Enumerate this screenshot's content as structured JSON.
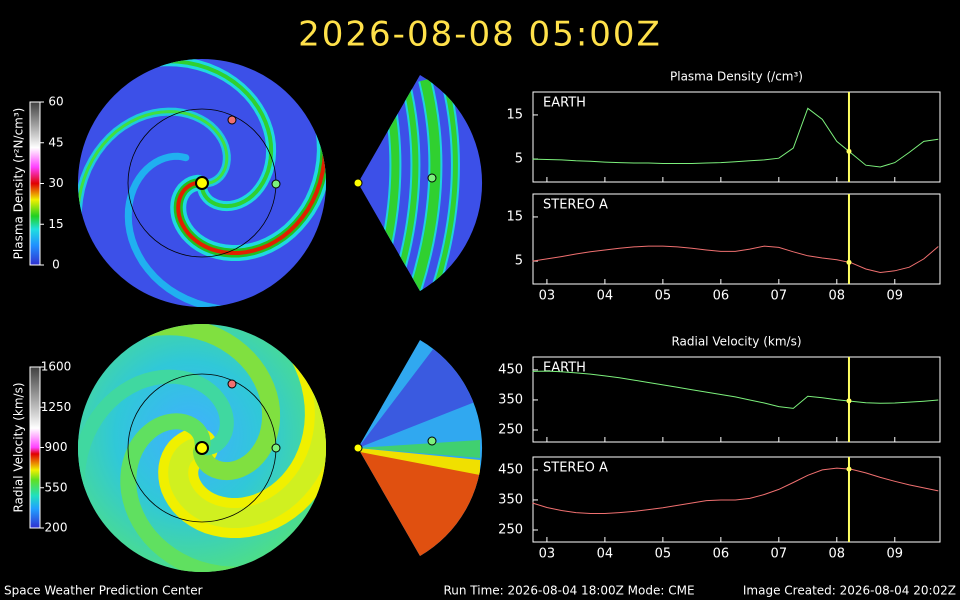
{
  "header": {
    "title": "2026-08-08  05:00Z"
  },
  "footer": {
    "left": "Space Weather Prediction Center",
    "center": "Run Time: 2026-08-04 18:00Z  Mode: CME",
    "right": "Image Created: 2026-08-04 20:02Z"
  },
  "colorbars": [
    {
      "label": "Plasma Density (r²N/cm³)",
      "ticks": [
        0,
        15,
        30,
        45,
        60
      ],
      "lim": [
        0,
        60
      ]
    },
    {
      "label": "Radial Velocity (km/s)",
      "ticks": [
        200,
        550,
        900,
        1250,
        1600
      ],
      "lim": [
        200,
        1600
      ]
    }
  ],
  "chart_data": [
    {
      "type": "line",
      "title": "Plasma Density (/cm³)",
      "show_xtick_labels": false,
      "x": [
        2.75,
        3,
        3.25,
        3.5,
        3.75,
        4,
        4.25,
        4.5,
        4.75,
        5,
        5.25,
        5.5,
        5.75,
        6,
        6.25,
        6.5,
        6.75,
        7,
        7.25,
        7.5,
        7.75,
        8,
        8.25,
        8.5,
        8.75,
        9,
        9.25,
        9.5,
        9.75
      ],
      "series": [
        {
          "name": "EARTH",
          "color": "#7cf07c",
          "values": [
            5.0,
            4.9,
            4.8,
            4.6,
            4.5,
            4.3,
            4.2,
            4.1,
            4.1,
            4.0,
            4.0,
            4.0,
            4.1,
            4.2,
            4.4,
            4.6,
            4.8,
            5.2,
            7.5,
            16.5,
            14.0,
            9.0,
            6.3,
            3.6,
            3.2,
            4.2,
            6.5,
            9.0,
            9.5
          ]
        }
      ],
      "xlim": [
        2.76,
        9.78
      ],
      "ylim": [
        -0.2,
        20.2
      ],
      "yticks": [
        5,
        15
      ],
      "xticks": [
        {
          "value": 3,
          "label": "03"
        },
        {
          "value": 4,
          "label": "04"
        },
        {
          "value": 5,
          "label": "05"
        },
        {
          "value": 6,
          "label": "06"
        },
        {
          "value": 7,
          "label": "07"
        },
        {
          "value": 8,
          "label": "08"
        },
        {
          "value": 9,
          "label": "09"
        }
      ],
      "time_marker": 8.21
    },
    {
      "type": "line",
      "show_xtick_labels": true,
      "x": [
        2.75,
        3,
        3.25,
        3.5,
        3.75,
        4,
        4.25,
        4.5,
        4.75,
        5,
        5.25,
        5.5,
        5.75,
        6,
        6.25,
        6.5,
        6.75,
        7,
        7.25,
        7.5,
        7.75,
        8,
        8.25,
        8.5,
        8.75,
        9,
        9.25,
        9.5,
        9.75
      ],
      "series": [
        {
          "name": "STEREO A",
          "color": "#f07070",
          "values": [
            5.0,
            5.5,
            6.0,
            6.6,
            7.1,
            7.5,
            7.9,
            8.2,
            8.4,
            8.4,
            8.2,
            7.9,
            7.5,
            7.2,
            7.2,
            7.7,
            8.4,
            8.1,
            7.1,
            6.2,
            5.7,
            5.3,
            4.6,
            3.2,
            2.4,
            2.8,
            3.6,
            5.5,
            8.3
          ]
        }
      ],
      "xlim": [
        2.76,
        9.78
      ],
      "ylim": [
        -0.2,
        20.2
      ],
      "yticks": [
        5,
        15
      ],
      "xticks": [
        {
          "value": 3,
          "label": "03"
        },
        {
          "value": 4,
          "label": "04"
        },
        {
          "value": 5,
          "label": "05"
        },
        {
          "value": 6,
          "label": "06"
        },
        {
          "value": 7,
          "label": "07"
        },
        {
          "value": 8,
          "label": "08"
        },
        {
          "value": 9,
          "label": "09"
        }
      ],
      "time_marker": 8.21
    },
    {
      "type": "line",
      "title": "Radial Velocity (km/s)",
      "show_xtick_labels": false,
      "x": [
        2.75,
        3,
        3.25,
        3.5,
        3.75,
        4,
        4.25,
        4.5,
        4.75,
        5,
        5.25,
        5.5,
        5.75,
        6,
        6.25,
        6.5,
        6.75,
        7,
        7.25,
        7.5,
        7.75,
        8,
        8.25,
        8.5,
        8.75,
        9,
        9.25,
        9.5,
        9.75
      ],
      "series": [
        {
          "name": "EARTH",
          "color": "#7cf07c",
          "values": [
            445,
            446,
            444,
            440,
            436,
            430,
            424,
            416,
            408,
            400,
            392,
            384,
            376,
            368,
            360,
            350,
            340,
            328,
            322,
            362,
            357,
            351,
            346,
            341,
            339,
            340,
            343,
            346,
            350
          ]
        }
      ],
      "xlim": [
        2.76,
        9.78
      ],
      "ylim": [
        210,
        493
      ],
      "yticks": [
        250,
        350,
        450
      ],
      "xticks": [
        {
          "value": 3,
          "label": "03"
        },
        {
          "value": 4,
          "label": "04"
        },
        {
          "value": 5,
          "label": "05"
        },
        {
          "value": 6,
          "label": "06"
        },
        {
          "value": 7,
          "label": "07"
        },
        {
          "value": 8,
          "label": "08"
        },
        {
          "value": 9,
          "label": "09"
        }
      ],
      "time_marker": 8.21
    },
    {
      "type": "line",
      "show_xtick_labels": true,
      "x": [
        2.75,
        3,
        3.25,
        3.5,
        3.75,
        4,
        4.25,
        4.5,
        4.75,
        5,
        5.25,
        5.5,
        5.75,
        6,
        6.25,
        6.5,
        6.75,
        7,
        7.25,
        7.5,
        7.75,
        8,
        8.25,
        8.5,
        8.75,
        9,
        9.25,
        9.5,
        9.75
      ],
      "series": [
        {
          "name": "STEREO A",
          "color": "#f07070",
          "values": [
            340,
            325,
            315,
            308,
            305,
            305,
            308,
            312,
            318,
            324,
            332,
            340,
            348,
            350,
            350,
            355,
            368,
            385,
            408,
            432,
            450,
            456,
            452,
            440,
            425,
            412,
            400,
            390,
            380
          ]
        }
      ],
      "xlim": [
        2.76,
        9.78
      ],
      "ylim": [
        210,
        493
      ],
      "yticks": [
        250,
        350,
        450
      ],
      "xticks": [
        {
          "value": 3,
          "label": "03"
        },
        {
          "value": 4,
          "label": "04"
        },
        {
          "value": 5,
          "label": "05"
        },
        {
          "value": 6,
          "label": "06"
        },
        {
          "value": 7,
          "label": "07"
        },
        {
          "value": 8,
          "label": "08"
        },
        {
          "value": 9,
          "label": "09"
        }
      ],
      "time_marker": 8.21
    }
  ]
}
